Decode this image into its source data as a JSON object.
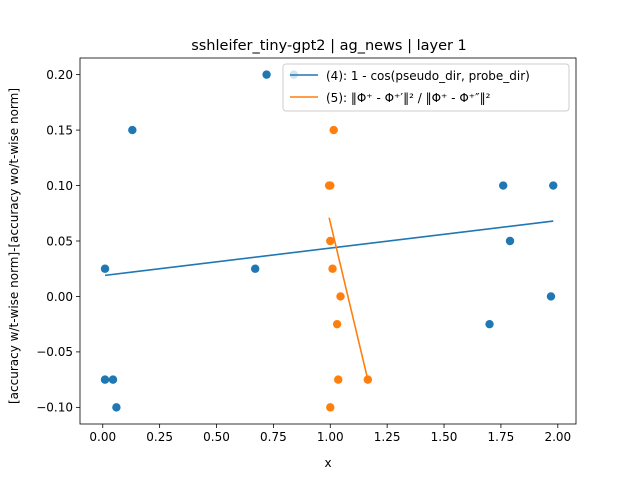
{
  "chart_data": {
    "type": "scatter",
    "title": "sshleifer_tiny-gpt2 | ag_news | layer 1",
    "xlabel": "x",
    "ylabel": "[accuracy w/t-wise norm]-[accuracy wo/t-wise norm]",
    "xlim": [
      -0.1,
      2.08
    ],
    "ylim": [
      -0.115,
      0.215
    ],
    "xticks": [
      0.0,
      0.25,
      0.5,
      0.75,
      1.0,
      1.25,
      1.5,
      1.75,
      2.0
    ],
    "xtick_labels": [
      "0.00",
      "0.25",
      "0.50",
      "0.75",
      "1.00",
      "1.25",
      "1.50",
      "1.75",
      "2.00"
    ],
    "yticks": [
      -0.1,
      -0.05,
      0.0,
      0.05,
      0.1,
      0.15,
      0.2
    ],
    "ytick_labels": [
      "−0.10",
      "−0.05",
      "0.00",
      "0.05",
      "0.10",
      "0.15",
      "0.20"
    ],
    "grid": false,
    "legend_position": "upper-right",
    "series": [
      {
        "name": "(4): 1 - cos(pseudo_dir, probe_dir)",
        "color": "#1f77b4",
        "points": [
          [
            0.01,
            0.025
          ],
          [
            0.01,
            -0.075
          ],
          [
            0.045,
            -0.075
          ],
          [
            0.06,
            -0.1
          ],
          [
            0.13,
            0.15
          ],
          [
            0.67,
            0.025
          ],
          [
            0.72,
            0.2
          ],
          [
            0.84,
            0.2
          ],
          [
            1.7,
            -0.025
          ],
          [
            1.76,
            0.1
          ],
          [
            1.79,
            0.05
          ],
          [
            1.97,
            0.0
          ],
          [
            1.98,
            0.1
          ]
        ],
        "fit_line": [
          [
            0.01,
            0.019
          ],
          [
            1.98,
            0.068
          ]
        ]
      },
      {
        "name": "(5): ‖Φ⁺ - Φ⁺′‖²  / ‖Φ⁺ - Φ⁺″‖²",
        "color": "#ff7f0e",
        "points": [
          [
            0.995,
            0.1
          ],
          [
            1.0,
            0.1
          ],
          [
            1.0,
            0.05
          ],
          [
            1.0,
            -0.1
          ],
          [
            1.01,
            0.025
          ],
          [
            1.015,
            0.15
          ],
          [
            1.03,
            -0.025
          ],
          [
            1.035,
            -0.075
          ],
          [
            1.045,
            0.0
          ],
          [
            1.165,
            -0.075
          ]
        ],
        "fit_line": [
          [
            0.995,
            0.071
          ],
          [
            1.165,
            -0.075
          ]
        ]
      }
    ]
  }
}
